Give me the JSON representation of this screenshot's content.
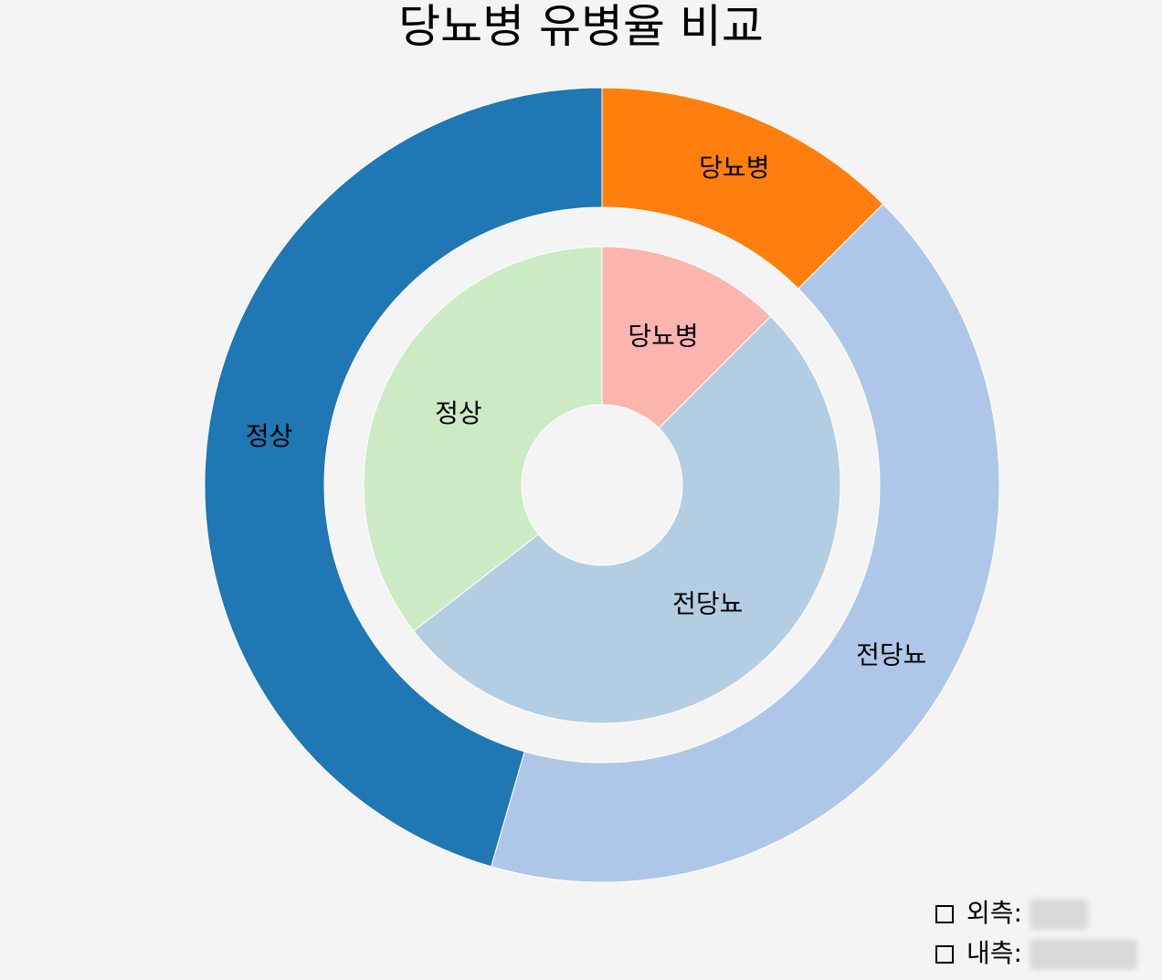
{
  "chart_data": {
    "type": "pie",
    "title": "당뇨병 유병율 비교",
    "rings": [
      {
        "name": "외측",
        "labels": [
          "당뇨병",
          "전당뇨",
          "정상"
        ],
        "values": [
          12.5,
          42.0,
          45.5
        ],
        "colors": [
          "#ff7f0e",
          "#aec7e8",
          "#1f77b4"
        ]
      },
      {
        "name": "내측",
        "labels": [
          "당뇨병",
          "전당뇨",
          "정상"
        ],
        "values": [
          12.5,
          52.0,
          35.5
        ],
        "colors": [
          "#fbb4ae",
          "#b3cde3",
          "#ccebc5"
        ]
      }
    ],
    "start_angle": "12 o'clock, clockwise",
    "legend": [
      "외측:",
      "내측:"
    ],
    "legend_position": "bottom-right"
  }
}
